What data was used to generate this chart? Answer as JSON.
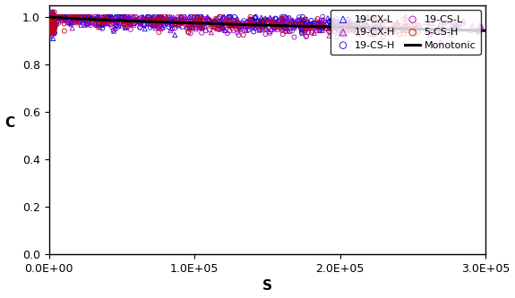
{
  "title": "",
  "xlabel": "S",
  "ylabel": "C",
  "xlim": [
    0,
    300000
  ],
  "ylim": [
    0.0,
    1.05
  ],
  "yticks": [
    0.0,
    0.2,
    0.4,
    0.6,
    0.8,
    1.0
  ],
  "series": {
    "19-CX-L": {
      "color": "#0000DD",
      "marker": "^"
    },
    "19-CX-H": {
      "color": "#9900BB",
      "marker": "^"
    },
    "19-CS-H": {
      "color": "#0000DD",
      "marker": "o"
    },
    "19-CS-L": {
      "color": "#9900BB",
      "marker": "o"
    },
    "5-CS-H": {
      "color": "#CC0000",
      "marker": "o"
    },
    "Monotonic": {
      "color": "#000000",
      "linestyle": "-"
    }
  },
  "curves": {
    "19-CX-L": {
      "alpha": 3.5e-06,
      "beta": 0.75,
      "s_max": 230000,
      "n": 220
    },
    "19-CX-H": {
      "alpha": 5.5e-06,
      "beta": 0.72,
      "s_max": 300000,
      "n": 260
    },
    "19-CS-H": {
      "alpha": 4.2e-06,
      "beta": 0.74,
      "s_max": 200000,
      "n": 210
    },
    "19-CS-L": {
      "alpha": 1.2e-05,
      "beta": 0.68,
      "s_max": 210000,
      "n": 260
    },
    "5-CS-H": {
      "alpha": 8e-06,
      "beta": 0.7,
      "s_max": 255000,
      "n": 190
    }
  },
  "monotonic": {
    "alpha": 6e-06,
    "beta": 0.73,
    "s_max": 300000
  }
}
